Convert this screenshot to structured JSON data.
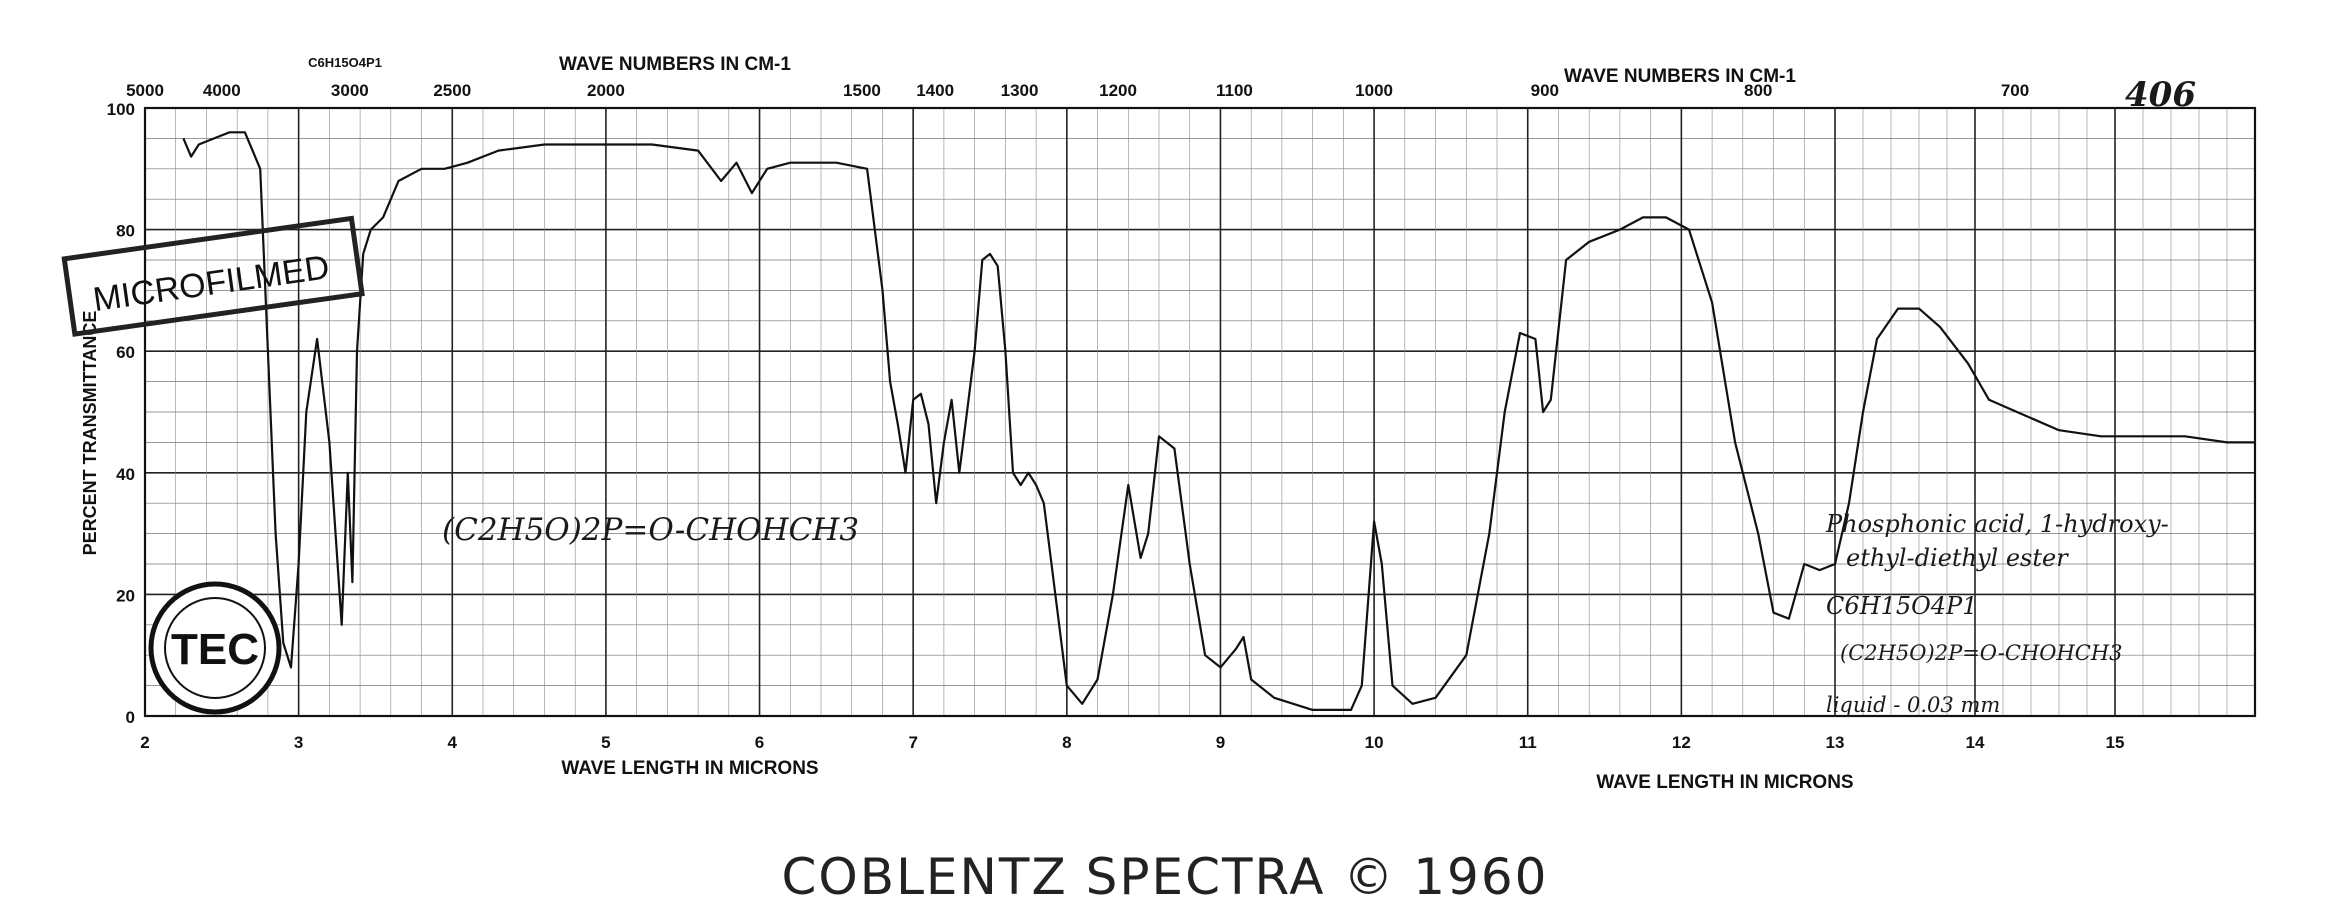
{
  "chart_data": {
    "type": "line",
    "title": "",
    "xlabel": "WAVE LENGTH IN MICRONS",
    "xlabel2": "WAVE LENGTH IN MICRONS",
    "ylabel": "PERCENT TRANSMITTANCE",
    "top_axis_label": "WAVE NUMBERS IN CM-1",
    "top_axis_label2": "WAVE NUMBERS IN CM-1",
    "chart_number": "406",
    "formula_top": "C6H15O4P1",
    "ylim": [
      0,
      100
    ],
    "xlim": [
      2,
      16
    ],
    "grid": true,
    "y_ticks": [
      "0",
      "20",
      "40",
      "60",
      "80",
      "100"
    ],
    "x_ticks": [
      "2",
      "3",
      "4",
      "5",
      "6",
      "7",
      "8",
      "9",
      "10",
      "11",
      "12",
      "13",
      "14",
      "15"
    ],
    "top_ticks": [
      "5000",
      "4000",
      "3000",
      "2500",
      "2000",
      "1500",
      "1400",
      "1300",
      "1200",
      "1100",
      "1000",
      "900",
      "800",
      "700"
    ],
    "series": [
      {
        "x": [
          2.25,
          2.3,
          2.35,
          2.45,
          2.55,
          2.65,
          2.75,
          2.8,
          2.85,
          2.9,
          2.95,
          3.0,
          3.05,
          3.12,
          3.2,
          3.28,
          3.32,
          3.35,
          3.38,
          3.42,
          3.47,
          3.55,
          3.65,
          3.8,
          3.95,
          4.1,
          4.3,
          4.6,
          5.0,
          5.3,
          5.6,
          5.75,
          5.85,
          5.95,
          6.05,
          6.2,
          6.5,
          6.7,
          6.8,
          6.85,
          6.9,
          6.95,
          7.0,
          7.05,
          7.1,
          7.15,
          7.2,
          7.25,
          7.3,
          7.35,
          7.4,
          7.45,
          7.5,
          7.55,
          7.6,
          7.65,
          7.7,
          7.75,
          7.8,
          7.85,
          7.9,
          8.0,
          8.1,
          8.2,
          8.3,
          8.4,
          8.48,
          8.53,
          8.6,
          8.7,
          8.8,
          8.9,
          9.0,
          9.1,
          9.15,
          9.2,
          9.35,
          9.6,
          9.85,
          9.92,
          10.0,
          10.05,
          10.12,
          10.25,
          10.4,
          10.6,
          10.75,
          10.85,
          10.95,
          11.05,
          11.1,
          11.15,
          11.25,
          11.4,
          11.6,
          11.75,
          11.9,
          12.05,
          12.2,
          12.35,
          12.5,
          12.6,
          12.7,
          12.8,
          12.9,
          13.0,
          13.1,
          13.2,
          13.3,
          13.45,
          13.6,
          13.75,
          13.95,
          14.1,
          14.3,
          14.6,
          14.9,
          15.2,
          15.5,
          15.8,
          16.0
        ],
        "y": [
          95,
          92,
          94,
          95,
          96,
          96,
          90,
          60,
          30,
          12,
          8,
          25,
          50,
          62,
          45,
          15,
          40,
          22,
          60,
          76,
          80,
          82,
          88,
          90,
          90,
          91,
          93,
          94,
          94,
          94,
          93,
          88,
          91,
          86,
          90,
          91,
          91,
          90,
          70,
          55,
          48,
          40,
          52,
          53,
          48,
          35,
          45,
          52,
          40,
          50,
          60,
          75,
          76,
          74,
          60,
          40,
          38,
          40,
          38,
          35,
          25,
          5,
          2,
          6,
          20,
          38,
          26,
          30,
          46,
          44,
          25,
          10,
          8,
          11,
          13,
          6,
          3,
          1,
          1,
          5,
          32,
          25,
          5,
          2,
          3,
          10,
          30,
          50,
          63,
          62,
          50,
          52,
          75,
          78,
          80,
          82,
          82,
          80,
          68,
          45,
          30,
          17,
          16,
          25,
          24,
          25,
          35,
          50,
          62,
          67,
          67,
          64,
          58,
          52,
          50,
          47,
          46,
          46,
          46,
          45,
          45
        ]
      }
    ]
  },
  "handwritten": {
    "structure_large": "(C2H5O)2P=O-CHOHCH3",
    "compound_name_1": "Phosphonic acid, 1-hydroxy-",
    "compound_name_2": "ethyl-diethyl ester",
    "formula": "C6H15O4P1",
    "structure_small": "(C2H5O)2P=O-CHOHCH3",
    "sample": "liquid - 0.03 mm"
  },
  "stamp": {
    "text": "MICROFILMED"
  },
  "logo": {
    "text": "TEC"
  },
  "footer": "COBLENTZ  SPECTRA © 1960"
}
